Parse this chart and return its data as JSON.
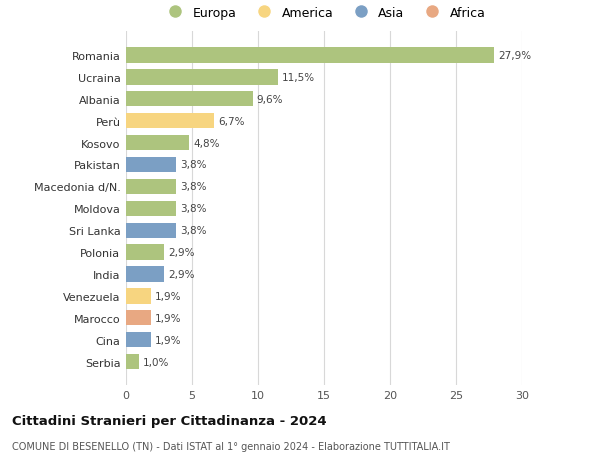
{
  "categories": [
    "Romania",
    "Ucraina",
    "Albania",
    "Perù",
    "Kosovo",
    "Pakistan",
    "Macedonia d/N.",
    "Moldova",
    "Sri Lanka",
    "Polonia",
    "India",
    "Venezuela",
    "Marocco",
    "Cina",
    "Serbia"
  ],
  "values": [
    27.9,
    11.5,
    9.6,
    6.7,
    4.8,
    3.8,
    3.8,
    3.8,
    3.8,
    2.9,
    2.9,
    1.9,
    1.9,
    1.9,
    1.0
  ],
  "labels": [
    "27,9%",
    "11,5%",
    "9,6%",
    "6,7%",
    "4,8%",
    "3,8%",
    "3,8%",
    "3,8%",
    "3,8%",
    "2,9%",
    "2,9%",
    "1,9%",
    "1,9%",
    "1,9%",
    "1,0%"
  ],
  "colors": [
    "#adc47e",
    "#adc47e",
    "#adc47e",
    "#f7d580",
    "#adc47e",
    "#7b9fc4",
    "#adc47e",
    "#adc47e",
    "#7b9fc4",
    "#adc47e",
    "#7b9fc4",
    "#f7d580",
    "#e8a882",
    "#7b9fc4",
    "#adc47e"
  ],
  "legend_labels": [
    "Europa",
    "America",
    "Asia",
    "Africa"
  ],
  "legend_colors": [
    "#adc47e",
    "#f7d580",
    "#7b9fc4",
    "#e8a882"
  ],
  "title": "Cittadini Stranieri per Cittadinanza - 2024",
  "subtitle": "COMUNE DI BESENELLO (TN) - Dati ISTAT al 1° gennaio 2024 - Elaborazione TUTTITALIA.IT",
  "xlim": [
    0,
    30
  ],
  "xticks": [
    0,
    5,
    10,
    15,
    20,
    25,
    30
  ],
  "bg_color": "#ffffff",
  "grid_color": "#d8d8d8"
}
